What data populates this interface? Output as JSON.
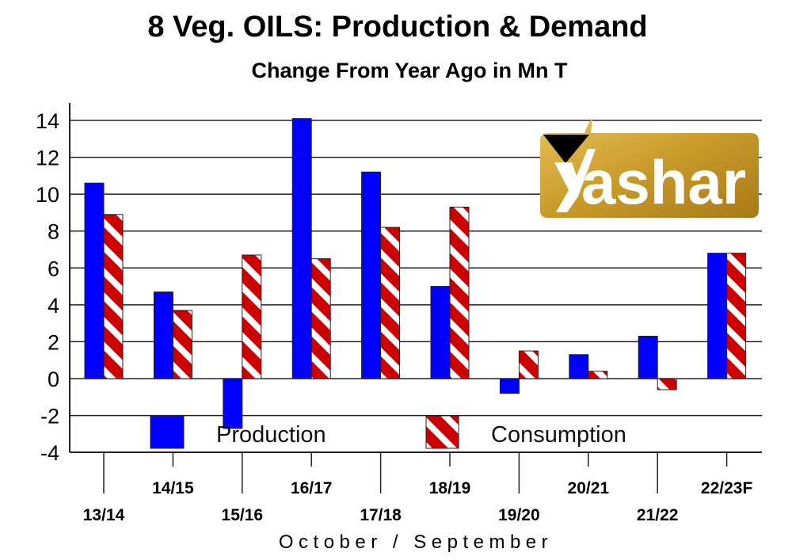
{
  "chart_data": {
    "type": "bar",
    "title": "8 Veg. OILS: Production & Demand",
    "subtitle": "Change From Year Ago in Mn T",
    "xlabel": "October / September",
    "ylabel": "",
    "ylim": [
      -4,
      14
    ],
    "yticks": [
      14,
      12,
      10,
      8,
      6,
      4,
      2,
      0,
      -2,
      -4
    ],
    "grid": true,
    "legend_placement": "bottom-inside",
    "categories": [
      "13/14",
      "14/15",
      "15/16",
      "16/17",
      "17/18",
      "18/19",
      "19/20",
      "20/21",
      "21/22",
      "22/23F"
    ],
    "series": [
      {
        "name": "Production",
        "color": "#0000ff",
        "pattern": "solid",
        "values": [
          10.6,
          4.7,
          -2.7,
          14.1,
          11.2,
          5.0,
          -0.8,
          1.3,
          2.3,
          6.8
        ]
      },
      {
        "name": "Consumption",
        "color": "#cc0000",
        "pattern": "red-white-diagonal-stripes",
        "values": [
          8.9,
          3.7,
          6.7,
          6.5,
          8.2,
          9.3,
          1.5,
          0.4,
          -0.6,
          6.8
        ]
      }
    ]
  },
  "logo": {
    "text": "ashar",
    "brand": "Yashar",
    "background": "#c99a2a",
    "accent": "#000000"
  }
}
